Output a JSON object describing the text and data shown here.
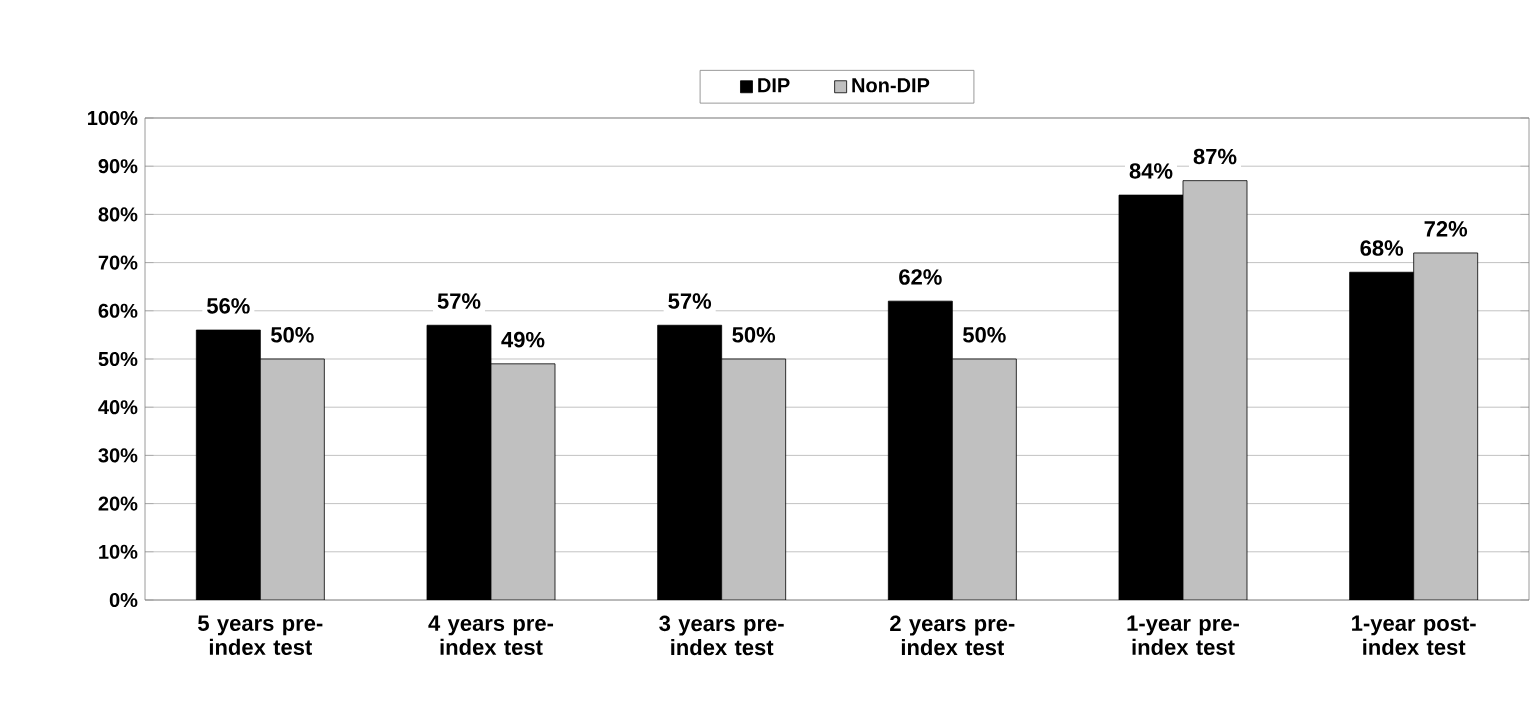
{
  "chart_data": {
    "type": "bar",
    "categories": [
      "5 years pre-index test",
      "4 years pre-index test",
      "3 years pre-index test",
      "2 years pre-index test",
      "1-year pre-index test",
      "1-year post-index test"
    ],
    "series": [
      {
        "name": "DIP",
        "color": "#000000",
        "values": [
          56,
          57,
          57,
          62,
          84,
          68
        ],
        "value_labels": [
          "56%",
          "57%",
          "57%",
          "62%",
          "84%",
          "68%"
        ]
      },
      {
        "name": "Non-DIP",
        "color": "#c0c0c0",
        "values": [
          50,
          49,
          50,
          50,
          87,
          72
        ],
        "value_labels": [
          "50%",
          "49%",
          "50%",
          "50%",
          "87%",
          "72%"
        ]
      }
    ],
    "ylim": [
      0,
      100
    ],
    "yticks": [
      {
        "value": 0,
        "label": "0%"
      },
      {
        "value": 10,
        "label": "10%"
      },
      {
        "value": 20,
        "label": "20%"
      },
      {
        "value": 30,
        "label": "30%"
      },
      {
        "value": 40,
        "label": "40%"
      },
      {
        "value": 50,
        "label": "50%"
      },
      {
        "value": 60,
        "label": "60%"
      },
      {
        "value": 70,
        "label": "70%"
      },
      {
        "value": 80,
        "label": "80%"
      },
      {
        "value": 90,
        "label": "90%"
      },
      {
        "value": 100,
        "label": "100%"
      }
    ],
    "grid": "y",
    "legend": "top"
  }
}
